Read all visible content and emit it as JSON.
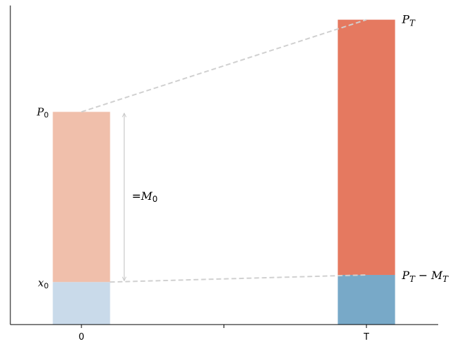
{
  "chart_data": {
    "type": "bar",
    "categories": [
      "0",
      "T"
    ],
    "middle_tick": "",
    "series": [
      {
        "values": [
          0.6,
          0.7
        ],
        "colors": [
          "#c9daea",
          "#78a9c8"
        ]
      },
      {
        "values": [
          2.4,
          3.6
        ],
        "colors": [
          "#f0bfab",
          "#e57960"
        ]
      }
    ],
    "totals": [
      3.0,
      4.3
    ],
    "ylim": [
      0,
      4.5
    ],
    "grid": false,
    "connector_color": "#d0d0d0",
    "labels": {
      "p0": {
        "main": "P",
        "sub": "0"
      },
      "x0": {
        "main": "x",
        "sub": "0"
      },
      "m0": {
        "prefix": "=",
        "main": "M",
        "sub": "0"
      },
      "pt": {
        "main": "P",
        "sub": "T"
      },
      "pt_minus_mt": {
        "main1": "P",
        "sub1": "T",
        "op": " − ",
        "main2": "M",
        "sub2": "T"
      }
    }
  }
}
